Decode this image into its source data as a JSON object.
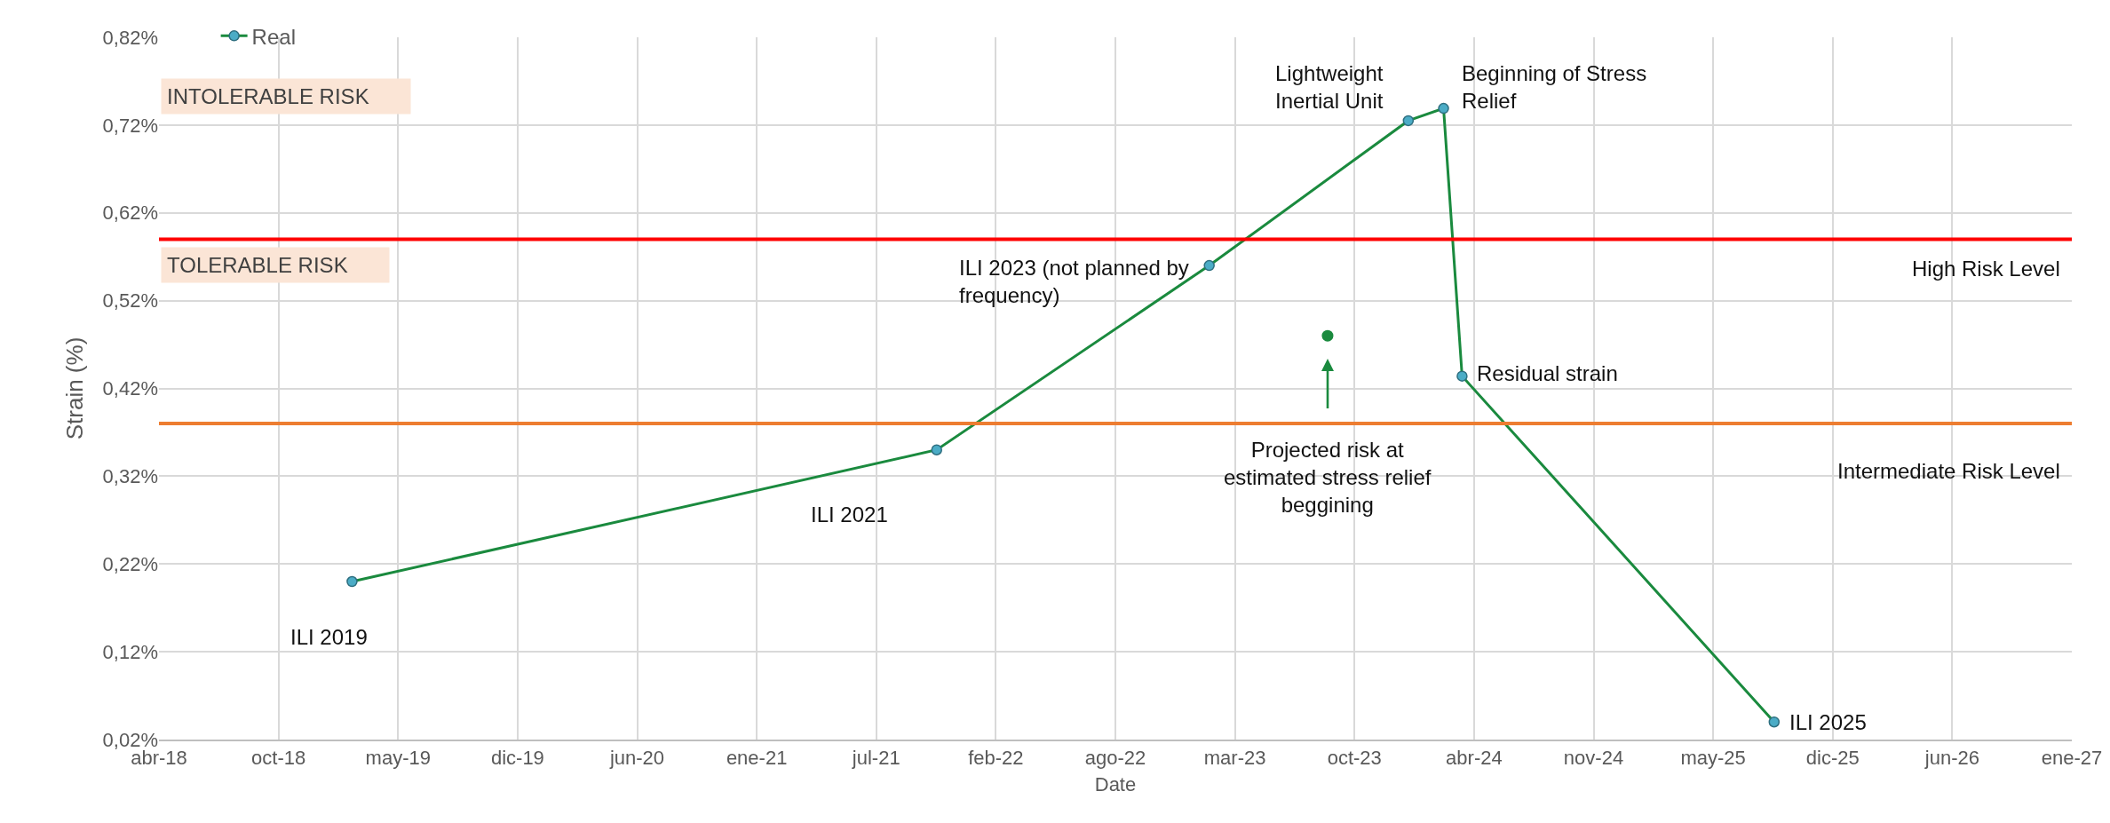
{
  "chart_data": {
    "type": "line",
    "xlabel": "Date",
    "ylabel": "Strain (%)",
    "series": [
      {
        "name": "Real",
        "type": "line",
        "color": "#1a8a3e",
        "colors": [
          "#4bacc6",
          "#4bacc6",
          "#4bacc6",
          "#4bacc6",
          "#4bacc6",
          "#4bacc6",
          "#4bacc6"
        ],
        "x": [
          "2019-02-27",
          "2021-11-01",
          "2023-01-31",
          "2023-12-30",
          "2024-02-27",
          "2024-03-29",
          "2025-09-02"
        ],
        "values": [
          0.2,
          0.35,
          0.56,
          0.725,
          0.739,
          0.434,
          0.04
        ]
      },
      {
        "type": "scatter",
        "color": "#1a8a3e",
        "x": [
          "2023-08-17"
        ],
        "values": [
          0.48
        ]
      }
    ],
    "xlim": [
      "2018-04-10",
      "2027-01-13"
    ],
    "xticks": [
      {
        "value": "2018-04-10",
        "label": "abr-18"
      },
      {
        "value": "2018-10-27",
        "label": "oct-18"
      },
      {
        "value": "2019-05-15",
        "label": "may-19"
      },
      {
        "value": "2019-12-01",
        "label": "dic-19"
      },
      {
        "value": "2020-06-18",
        "label": "jun-20"
      },
      {
        "value": "2021-01-04",
        "label": "ene-21"
      },
      {
        "value": "2021-07-23",
        "label": "jul-21"
      },
      {
        "value": "2022-02-08",
        "label": "feb-22"
      },
      {
        "value": "2022-08-27",
        "label": "ago-22"
      },
      {
        "value": "2023-03-15",
        "label": "mar-23"
      },
      {
        "value": "2023-10-01",
        "label": "oct-23"
      },
      {
        "value": "2024-04-18",
        "label": "abr-24"
      },
      {
        "value": "2024-11-04",
        "label": "nov-24"
      },
      {
        "value": "2025-05-23",
        "label": "may-25"
      },
      {
        "value": "2025-12-09",
        "label": "dic-25"
      },
      {
        "value": "2026-06-27",
        "label": "jun-26"
      },
      {
        "value": "2027-01-13",
        "label": "ene-27"
      }
    ],
    "ylim": [
      0.02,
      0.82
    ],
    "yticks": [
      {
        "value": 0.02,
        "label": "0,02%"
      },
      {
        "value": 0.12,
        "label": "0,12%"
      },
      {
        "value": 0.22,
        "label": "0,22%"
      },
      {
        "value": 0.32,
        "label": "0,32%"
      },
      {
        "value": 0.42,
        "label": "0,42%"
      },
      {
        "value": 0.52,
        "label": "0,52%"
      },
      {
        "value": 0.62,
        "label": "0,62%"
      },
      {
        "value": 0.72,
        "label": "0,72%"
      },
      {
        "value": 0.82,
        "label": "0,82%"
      }
    ],
    "ref_lines": [
      {
        "axis": "y",
        "value": 0.59,
        "label": "High Risk Level",
        "color": "#ff0000"
      },
      {
        "axis": "y",
        "value": 0.38,
        "label": "Intermediate Risk Level",
        "color": "#ed7d31"
      }
    ],
    "annotations": [
      {
        "text": "ILI 2019",
        "x": "2019-02-27",
        "y": 0.2
      },
      "ILI 2021",
      {
        "text": "ILI 2023 (not planned by frequency)",
        "x": "2023-01-31",
        "y": 0.56
      },
      {
        "text": "Lightweight Inertial Unit",
        "x": "2023-12-30",
        "y": 0.725
      },
      {
        "text": "Beginning of Stress Relief",
        "x": "2024-02-27",
        "y": 0.739
      },
      {
        "text": "Residual strain",
        "x": "2024-03-29",
        "y": 0.434
      },
      {
        "text": "ILI 2025",
        "x": "2025-09-02",
        "y": 0.04
      },
      "Projected risk at estimated stress relief beggining",
      "INTOLERABLE RISK",
      "TOLERABLE RISK"
    ],
    "grid": true,
    "legend": "top left",
    "marker": "circle",
    "line_style": "solid"
  }
}
